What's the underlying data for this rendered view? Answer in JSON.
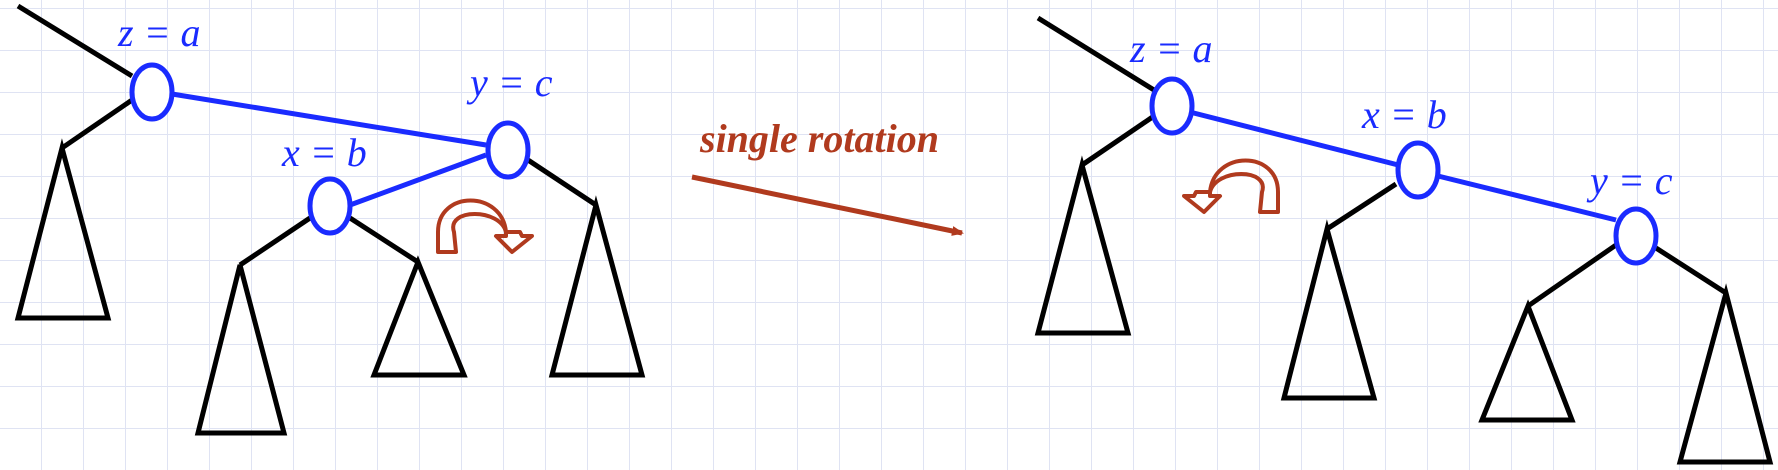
{
  "colors": {
    "node": "#1a2bff",
    "edge": "#000000",
    "accent": "#b03a1e"
  },
  "before": {
    "z_label": "z = a",
    "x_label": "x = b",
    "y_label": "y = c"
  },
  "after": {
    "z_label": "z = a",
    "x_label": "x = b",
    "y_label": "y = c"
  },
  "operation": {
    "label": "single rotation"
  },
  "icons": [
    "rotate-cw-arrow-icon",
    "rotate-ccw-arrow-icon",
    "right-arrow-icon"
  ]
}
